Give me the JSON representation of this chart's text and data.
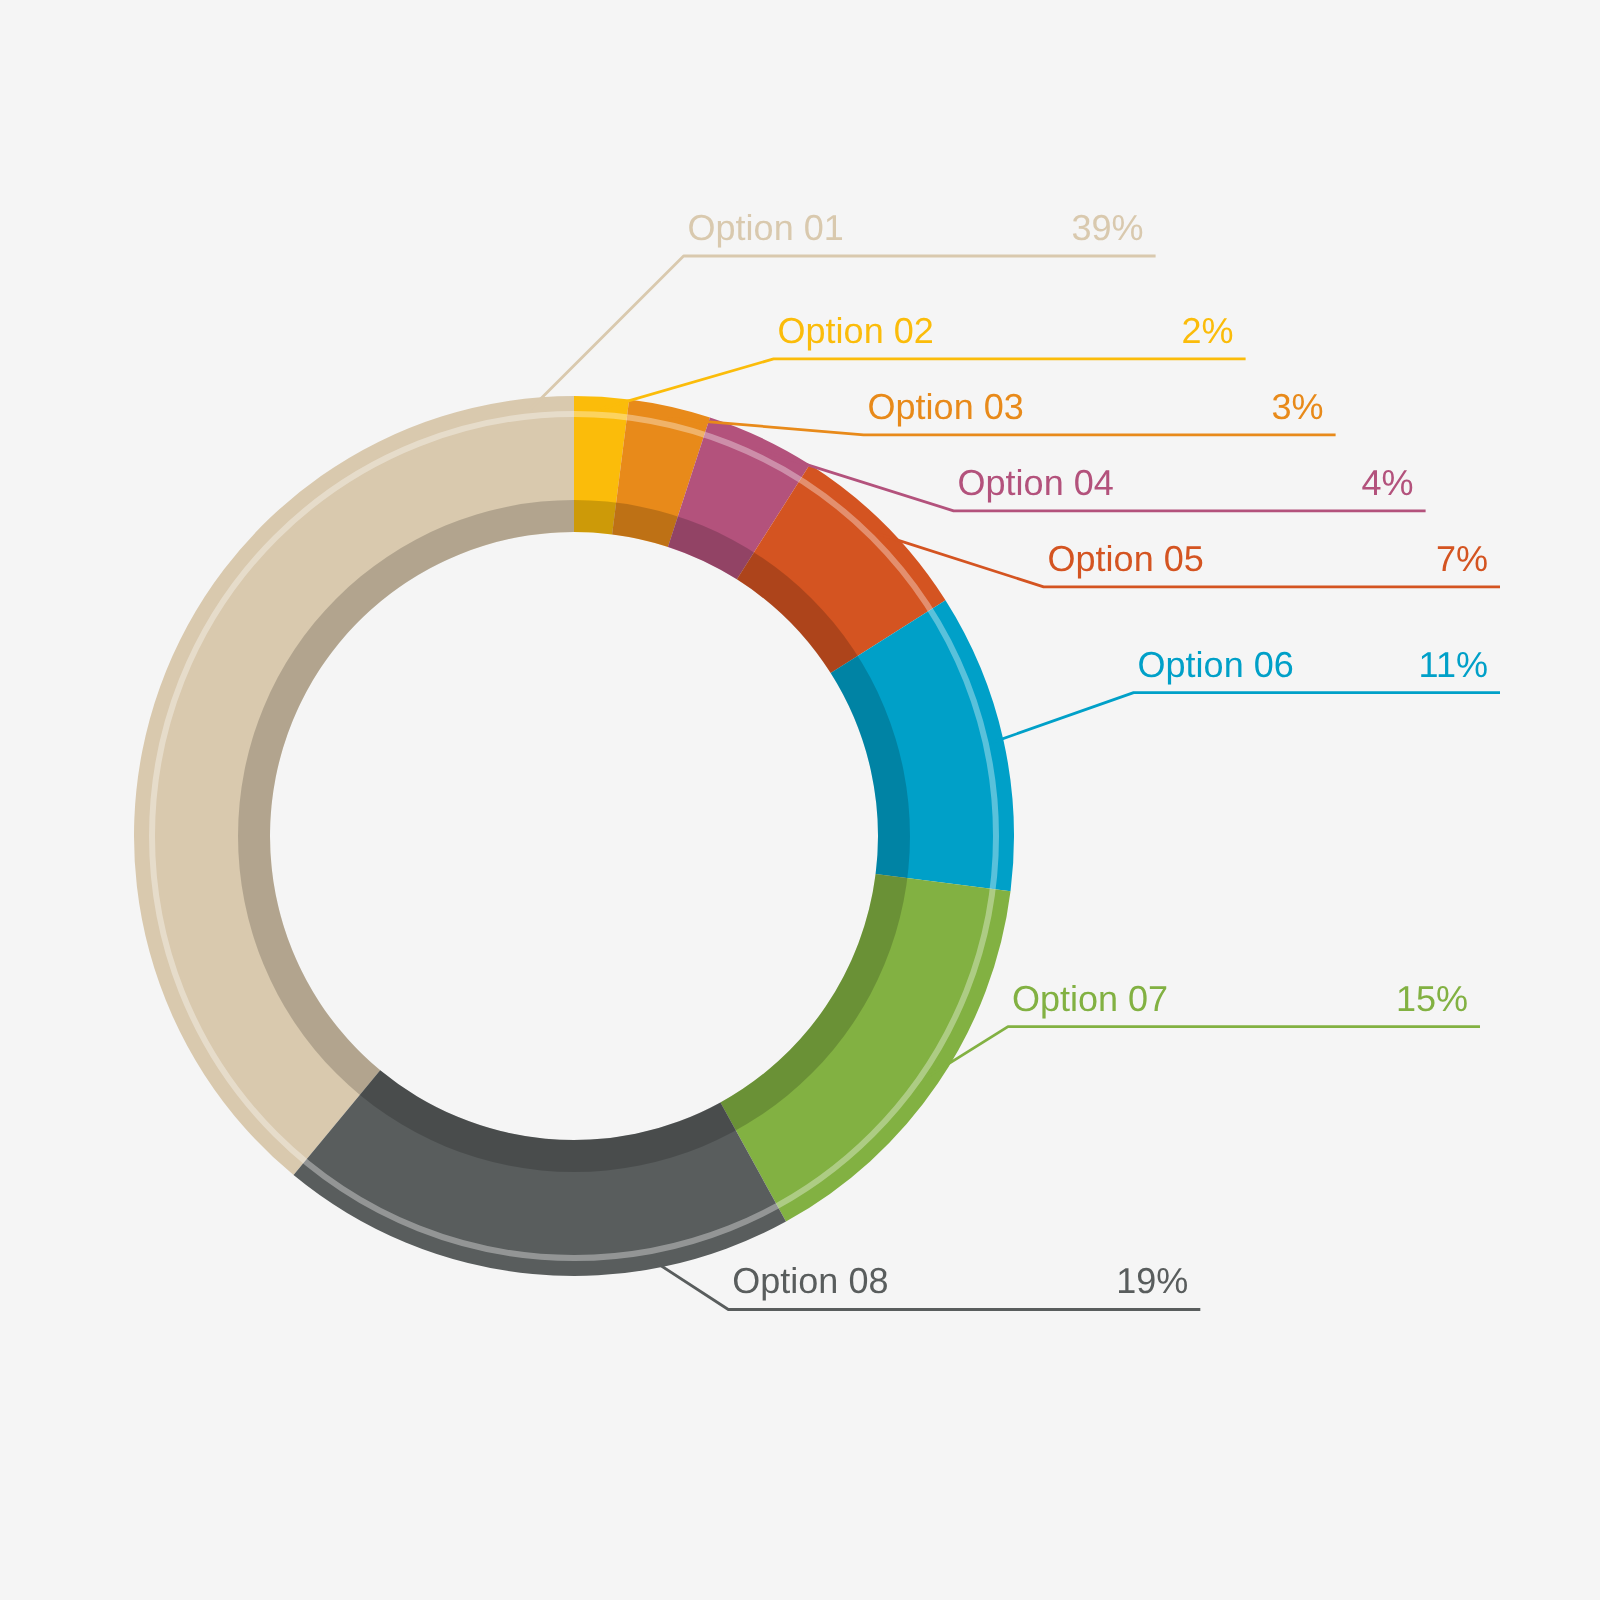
{
  "chart_data": {
    "type": "donut",
    "categories": [
      "Option 01",
      "Option 02",
      "Option 03",
      "Option 04",
      "Option 05",
      "Option 06",
      "Option 07",
      "Option 08"
    ],
    "values": [
      39,
      2,
      3,
      4,
      7,
      11,
      15,
      19
    ],
    "colors": [
      "#d9c9ae",
      "#fbbc0a",
      "#e88a1a",
      "#b3527c",
      "#d45421",
      "#00a0c8",
      "#82b142",
      "#595d5d"
    ],
    "value_labels": [
      "39%",
      "2%",
      "3%",
      "4%",
      "7%",
      "11%",
      "15%",
      "19%"
    ]
  }
}
